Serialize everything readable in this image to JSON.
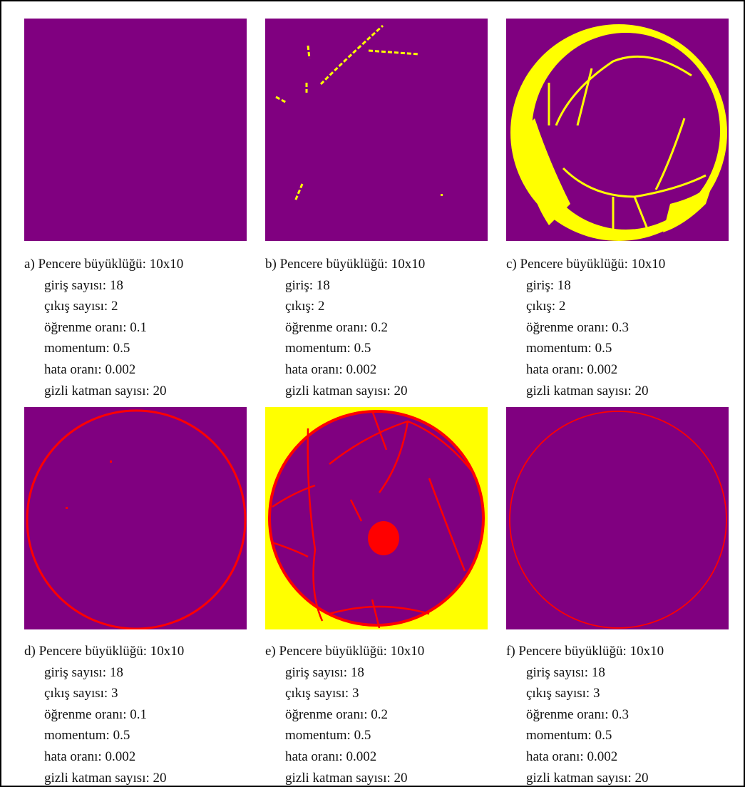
{
  "panels": [
    {
      "lines": [
        "a) Pencere büyüklüğü: 10x10",
        "giriş sayısı: 18",
        "çıkış sayısı: 2",
        "öğrenme oranı: 0.1",
        "momentum: 0.5",
        "hata oranı: 0.002",
        "gizli katman sayısı: 20"
      ]
    },
    {
      "lines": [
        "b) Pencere büyüklüğü: 10x10",
        "giriş: 18",
        "çıkış: 2",
        "öğrenme oranı: 0.2",
        "momentum: 0.5",
        "hata oranı: 0.002",
        "gizli katman sayısı: 20"
      ]
    },
    {
      "lines": [
        "c) Pencere büyüklüğü: 10x10",
        "giriş: 18",
        "çıkış: 2",
        "öğrenme oranı: 0.3",
        "momentum: 0.5",
        "hata oranı: 0.002",
        "gizli katman sayısı: 20"
      ]
    },
    {
      "lines": [
        "d) Pencere büyüklüğü: 10x10",
        "giriş sayısı: 18",
        "çıkış sayısı: 3",
        "öğrenme oranı: 0.1",
        "momentum: 0.5",
        "hata oranı: 0.002",
        "gizli katman sayısı: 20"
      ]
    },
    {
      "lines": [
        "e) Pencere büyüklüğü: 10x10",
        "giriş sayısı: 18",
        "çıkış sayısı: 3",
        "öğrenme oranı: 0.2",
        "momentum: 0.5",
        "hata oranı: 0.002",
        "gizli katman sayısı: 20"
      ]
    },
    {
      "lines": [
        "f) Pencere büyüklüğü: 10x10",
        "giriş sayısı: 18",
        "çıkış sayısı: 3",
        "öğrenme oranı: 0.3",
        "momentum: 0.5",
        "hata oranı: 0.002",
        "gizli katman sayısı: 20"
      ]
    }
  ]
}
